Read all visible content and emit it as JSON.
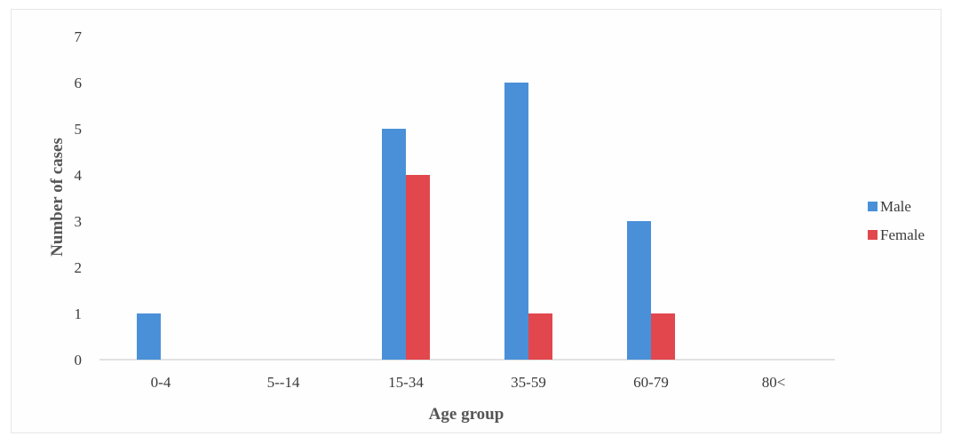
{
  "chart_data": {
    "type": "bar",
    "categories": [
      "0-4",
      "5--14",
      "15-34",
      "35-59",
      "60-79",
      "80<"
    ],
    "series": [
      {
        "name": "Male",
        "values": [
          1,
          0,
          5,
          6,
          3,
          0
        ],
        "color": "#4a90d8"
      },
      {
        "name": "Female",
        "values": [
          0,
          0,
          4,
          1,
          1,
          0
        ],
        "color": "#e2474e"
      }
    ],
    "xlabel": "Age group",
    "ylabel": "Number of cases",
    "ylim": [
      0,
      7
    ],
    "yticks": [
      "0",
      "1",
      "2",
      "3",
      "4",
      "5",
      "6",
      "7"
    ],
    "grid": false,
    "legend": "right"
  }
}
